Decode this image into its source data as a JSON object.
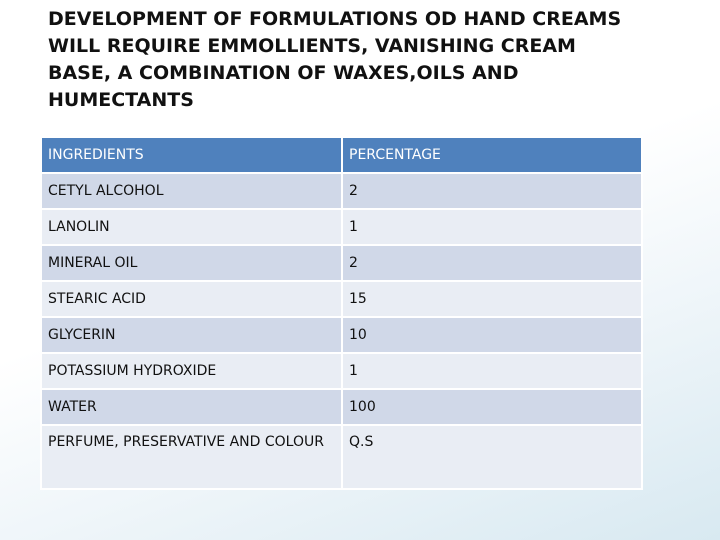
{
  "header": {
    "title_lines": [
      "DEVELOPMENT OF FORMULATIONS OD HAND CREAMS",
      "WILL REQUIRE EMMOLLIENTS, VANISHING CREAM",
      "BASE, A COMBINATION OF WAXES,OILS AND",
      "HUMECTANTS"
    ]
  },
  "table": {
    "columns": [
      "INGREDIENTS",
      "PERCENTAGE"
    ],
    "rows": [
      [
        "CETYL ALCOHOL",
        "2"
      ],
      [
        "LANOLIN",
        "1"
      ],
      [
        "MINERAL OIL",
        "2"
      ],
      [
        "STEARIC ACID",
        "15"
      ],
      [
        "GLYCERIN",
        "10"
      ],
      [
        "POTASSIUM HYDROXIDE",
        "1"
      ],
      [
        "WATER",
        "100"
      ],
      [
        "PERFUME, PRESERVATIVE AND COLOUR",
        "Q.S"
      ]
    ]
  }
}
